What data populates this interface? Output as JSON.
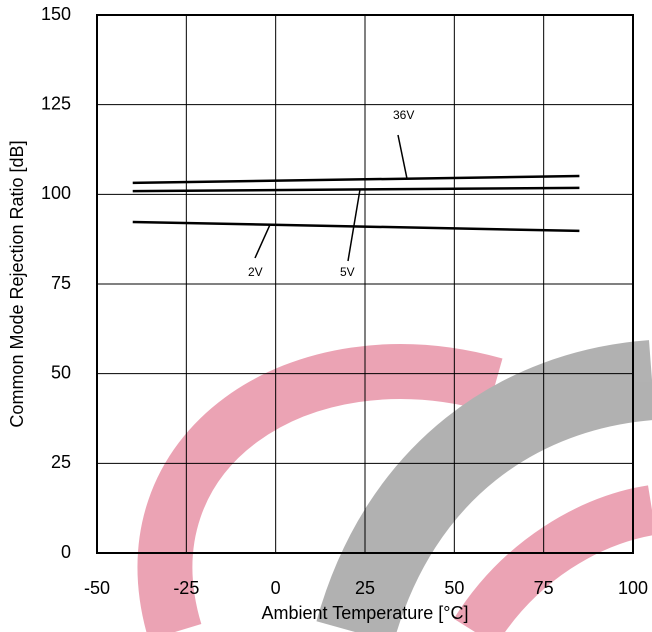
{
  "chart_data": {
    "type": "line",
    "x_label": "Ambient Temperature [°C]",
    "y_label": "Common Mode Rejection Ratio [dB]",
    "x": [
      -40,
      85
    ],
    "series": [
      {
        "name": "36V",
        "color": "#000000",
        "values": [
          103.2,
          105.1
        ]
      },
      {
        "name": "5V",
        "color": "#000000",
        "values": [
          100.9,
          101.8
        ]
      },
      {
        "name": "2V",
        "color": "#000000",
        "values": [
          92.3,
          89.8
        ]
      }
    ],
    "xlim": [
      -50,
      100
    ],
    "xticks": [
      -50,
      -25,
      0,
      25,
      50,
      75,
      100
    ],
    "ylim": [
      0,
      150
    ],
    "yticks": [
      0,
      25,
      50,
      75,
      100,
      125,
      150
    ],
    "grid": true
  }
}
